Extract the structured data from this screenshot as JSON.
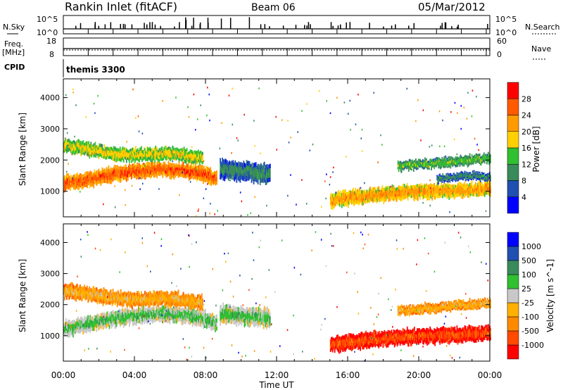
{
  "header": {
    "site": "Rankin Inlet (fitACF)",
    "beam": "Beam 06",
    "date": "05/Mar/2012"
  },
  "top_panels": {
    "nsky_label": "N.Sky",
    "nsearch_label": "N.Search",
    "nsky_ticks_left": [
      "10^5",
      "10^0"
    ],
    "nsky_ticks_right": [
      "10^5",
      "10^0"
    ],
    "freq_label_1": "Freq.",
    "freq_label_2": "[MHz]",
    "freq_ticks": [
      "18",
      "8"
    ],
    "nave_label": "Nave",
    "nave_ticks": [
      "60",
      "0"
    ],
    "cpid_label": "CPID",
    "cpid_value": "themis 3300"
  },
  "axes": {
    "ylabel": "Slant Range [km]",
    "yticks": [
      "4000",
      "3000",
      "2000",
      "1000"
    ],
    "xlabel": "Time UT",
    "xticks": [
      "00:00",
      "04:00",
      "08:00",
      "12:00",
      "16:00",
      "20:00",
      "00:00"
    ]
  },
  "colors": {
    "power": [
      "#0000ff",
      "#2050b0",
      "#3a8a5c",
      "#30c030",
      "#ffd000",
      "#ff9a00",
      "#ff5a00",
      "#ff0000"
    ],
    "velocity": [
      "#ff0000",
      "#ff4a00",
      "#ff8a00",
      "#ffb000",
      "#c8c8c8",
      "#30c030",
      "#3a8a5c",
      "#2050b0",
      "#0000ff"
    ]
  },
  "chart_data": [
    {
      "type": "heatmap",
      "panel": "power",
      "colorbar_label": "Power [dB]",
      "colorbar_ticks": [
        "28",
        "24",
        "20",
        "16",
        "12",
        "8",
        "4"
      ],
      "xlim": [
        0,
        24
      ],
      "ylim": [
        180,
        4600
      ],
      "bands": [
        {
          "t_start": 0.0,
          "t_end": 8.6,
          "range_center": [
            1250,
            1320,
            1480,
            1580,
            1650,
            1700,
            1680,
            1600,
            1400
          ],
          "width": 430,
          "level": 7
        },
        {
          "t_start": 0.0,
          "t_end": 7.8,
          "range_center": [
            2450,
            2380,
            2280,
            2200,
            2150,
            2180,
            2200,
            2150,
            2050
          ],
          "width": 380,
          "level": 5
        },
        {
          "t_start": 8.8,
          "t_end": 11.6,
          "range_center": [
            1700,
            1650,
            1600,
            1550
          ],
          "width": 550,
          "level": 3
        },
        {
          "t_start": 15.0,
          "t_end": 24.0,
          "range_center": [
            700,
            780,
            850,
            900,
            950,
            980,
            1000,
            1020,
            1050,
            1100
          ],
          "width": 420,
          "level": 6
        },
        {
          "t_start": 18.8,
          "t_end": 24.0,
          "range_center": [
            1800,
            1850,
            1900,
            1950,
            2000,
            2050
          ],
          "width": 280,
          "level": 4
        },
        {
          "t_start": 21.0,
          "t_end": 24.0,
          "range_center": [
            1400,
            1450,
            1500,
            1450
          ],
          "width": 220,
          "level": 3
        }
      ]
    },
    {
      "type": "heatmap",
      "panel": "velocity",
      "colorbar_label": "Velocity [m s^-1]",
      "colorbar_ticks": [
        "1000",
        "500",
        "100",
        "25",
        "-25",
        "-100",
        "-500",
        "-1000"
      ],
      "xlim": [
        0,
        24
      ],
      "ylim": [
        180,
        4600
      ],
      "bands": [
        {
          "t_start": 0.0,
          "t_end": 8.6,
          "range_center": [
            1250,
            1320,
            1480,
            1580,
            1650,
            1700,
            1680,
            1600,
            1400
          ],
          "width": 470,
          "level": 6
        },
        {
          "t_start": 0.0,
          "t_end": 7.8,
          "range_center": [
            2450,
            2380,
            2280,
            2200,
            2150,
            2180,
            2200,
            2150,
            2050
          ],
          "width": 420,
          "level": 4
        },
        {
          "t_start": 8.8,
          "t_end": 11.6,
          "range_center": [
            1700,
            1650,
            1600,
            1550
          ],
          "width": 550,
          "level": 6
        },
        {
          "t_start": 15.0,
          "t_end": 24.0,
          "range_center": [
            700,
            780,
            850,
            900,
            950,
            980,
            1000,
            1020,
            1050,
            1100
          ],
          "width": 450,
          "level": 2
        },
        {
          "t_start": 18.8,
          "t_end": 24.0,
          "range_center": [
            1800,
            1850,
            1900,
            1950,
            2000,
            2050
          ],
          "width": 280,
          "level": 4
        }
      ]
    }
  ]
}
